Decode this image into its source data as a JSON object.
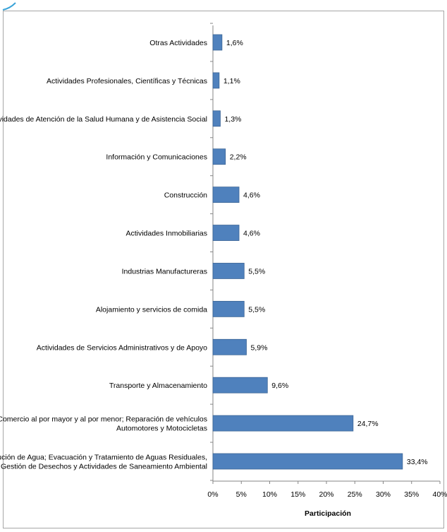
{
  "chart_data": {
    "type": "bar",
    "orientation": "horizontal",
    "categories": [
      [
        "Otras Actividades"
      ],
      [
        "Actividades Profesionales, Científicas y Técnicas"
      ],
      [
        "Actividades de Atención de la Salud Humana y de Asistencia Social"
      ],
      [
        "Información y Comunicaciones"
      ],
      [
        "Construcción"
      ],
      [
        "Actividades Inmobiliarias"
      ],
      [
        "Industrias Manufactureras"
      ],
      [
        "Alojamiento y servicios de comida"
      ],
      [
        "Actividades de Servicios Administrativos y de Apoyo"
      ],
      [
        "Transporte y Almacenamiento"
      ],
      [
        "Comercio al por mayor y al por menor; Reparación de vehículos",
        "Automotores y Motocicletas"
      ],
      [
        "Distribución de Agua; Evacuación y Tratamiento de Aguas Residuales,",
        "Gestión de Desechos y Actividades de Saneamiento Ambiental"
      ]
    ],
    "values": [
      1.6,
      1.1,
      1.3,
      2.2,
      4.6,
      4.6,
      5.5,
      5.5,
      5.9,
      9.6,
      24.7,
      33.4
    ],
    "value_labels": [
      "1,6%",
      "1,1%",
      "1,3%",
      "2,2%",
      "4,6%",
      "4,6%",
      "5,5%",
      "5,5%",
      "5,9%",
      "9,6%",
      "24,7%",
      "33,4%"
    ],
    "xlim": [
      0,
      40
    ],
    "x_ticks": [
      0,
      5,
      10,
      15,
      20,
      25,
      30,
      35,
      40
    ],
    "x_tick_labels": [
      "0%",
      "5%",
      "10%",
      "15%",
      "20%",
      "25%",
      "30%",
      "35%",
      "40%"
    ],
    "xlabel": "Participación",
    "ylabel": "",
    "title": "",
    "grid": false,
    "legend": "none",
    "bar_color": "#4f81bd",
    "bar_edge_color": "#3c6595",
    "frame_color": "#a6a6a6"
  }
}
